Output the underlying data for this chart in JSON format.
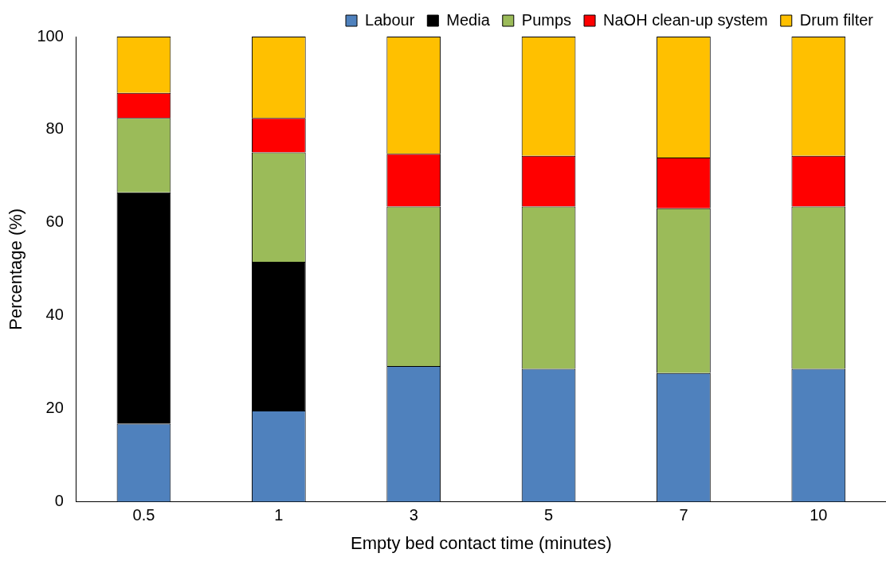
{
  "chart_data": {
    "type": "bar",
    "stacked": true,
    "xlabel": "Empty bed contact time (minutes)",
    "ylabel": "Percentage (%)",
    "categories": [
      "0.5",
      "1",
      "3",
      "5",
      "7",
      "10"
    ],
    "series": [
      {
        "name": "Labour",
        "color": "#4f81bd",
        "values": [
          16.8,
          19.6,
          29.2,
          28.6,
          27.7,
          28.6
        ]
      },
      {
        "name": "Media",
        "color": "#000000",
        "values": [
          49.7,
          32.0,
          0,
          0,
          0,
          0
        ]
      },
      {
        "name": "Pumps",
        "color": "#9bbb59",
        "values": [
          16.0,
          23.5,
          34.3,
          34.9,
          35.4,
          34.9
        ]
      },
      {
        "name": "NaOH clean-up system",
        "color": "#ff0000",
        "values": [
          5.4,
          7.4,
          11.3,
          10.9,
          10.9,
          10.9
        ]
      },
      {
        "name": "Drum filter",
        "color": "#ffc000",
        "values": [
          12.1,
          17.5,
          25.2,
          25.6,
          26.0,
          25.6
        ]
      }
    ],
    "ylim": [
      0,
      100
    ],
    "yticks": [
      0,
      20,
      40,
      60,
      80,
      100
    ],
    "grid": false,
    "legend": "top right"
  }
}
